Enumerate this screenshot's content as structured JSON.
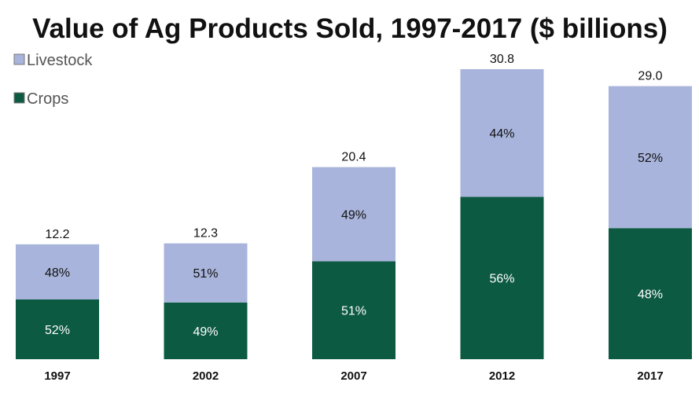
{
  "chart_data": {
    "type": "bar",
    "stacked": true,
    "title": "Value of Ag Products Sold, 1997-2017 ($ billions)",
    "categories": [
      "1997",
      "2002",
      "2007",
      "2012",
      "2017"
    ],
    "totals": [
      12.2,
      12.3,
      20.4,
      30.8,
      29.0
    ],
    "total_labels": [
      "12.2",
      "12.3",
      "20.4",
      "30.8",
      "29.0"
    ],
    "series": [
      {
        "name": "Crops",
        "color": "#0d5a43",
        "label_color": "#ffffff",
        "percent": [
          52,
          49,
          51,
          56,
          48
        ],
        "labels": [
          "52%",
          "49%",
          "51%",
          "56%",
          "48%"
        ]
      },
      {
        "name": "Livestock",
        "color": "#a8b4db",
        "label_color": "#111111",
        "percent": [
          48,
          51,
          49,
          44,
          52
        ],
        "labels": [
          "48%",
          "51%",
          "49%",
          "44%",
          "52%"
        ]
      }
    ],
    "legend": {
      "placement": "top-left",
      "order": [
        "Livestock",
        "Crops"
      ]
    },
    "ylim": [
      0,
      31
    ],
    "grid": false,
    "xlabel": "",
    "ylabel": ""
  }
}
